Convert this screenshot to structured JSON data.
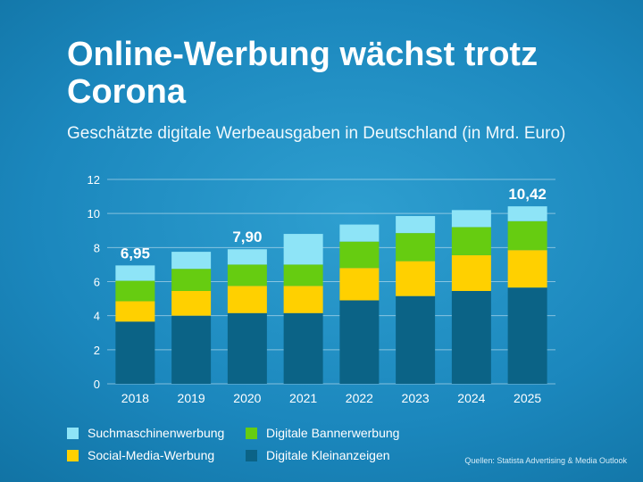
{
  "title": "Online-Werbung wächst trotz Corona",
  "subtitle": "Geschätzte digitale Werbeausgaben in Deutschland (in Mrd. Euro)",
  "source": "Quellen: Statista Advertising & Media Outlook",
  "colors": {
    "Digitale Kleinanzeigen": "#0b6386",
    "Social-Media-Werbung": "#ffd000",
    "Digitale Bannerwerbung": "#66cc11",
    "Suchmaschinenwerbung": "#8ee4f7"
  },
  "chart_data": {
    "type": "bar",
    "stacked": true,
    "categories": [
      "2018",
      "2019",
      "2020",
      "2021",
      "2022",
      "2023",
      "2024",
      "2025"
    ],
    "series": [
      {
        "name": "Digitale Kleinanzeigen",
        "values": [
          3.65,
          4.0,
          4.15,
          4.15,
          4.9,
          5.15,
          5.45,
          5.65
        ]
      },
      {
        "name": "Social-Media-Werbung",
        "values": [
          1.2,
          1.45,
          1.6,
          1.6,
          1.9,
          2.05,
          2.1,
          2.2
        ]
      },
      {
        "name": "Digitale Bannerwerbung",
        "values": [
          1.2,
          1.3,
          1.25,
          1.25,
          1.55,
          1.65,
          1.65,
          1.7
        ]
      },
      {
        "name": "Suchmaschinenwerbung",
        "values": [
          0.9,
          1.0,
          0.9,
          1.8,
          1.0,
          1.0,
          1.0,
          0.87
        ]
      }
    ],
    "annotations": [
      {
        "category": "2018",
        "label": "6,95"
      },
      {
        "category": "2020",
        "label": "7,90"
      },
      {
        "category": "2025",
        "label": "10,42"
      }
    ],
    "ylim": [
      0,
      12
    ],
    "yticks": [
      0,
      2,
      4,
      6,
      8,
      10,
      12
    ],
    "grid": true,
    "legend": {
      "placement": "bottom-left",
      "order": [
        "Suchmaschinenwerbung",
        "Digitale Bannerwerbung",
        "Social-Media-Werbung",
        "Digitale Kleinanzeigen"
      ]
    }
  }
}
